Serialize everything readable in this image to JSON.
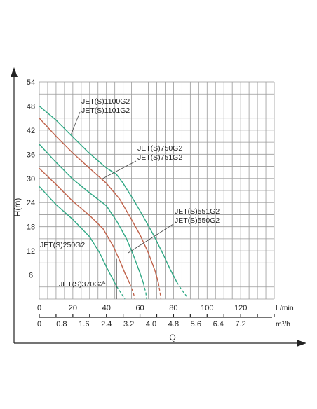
{
  "chart_data": {
    "type": "line",
    "ylabel": "H(m)",
    "xlabel": "Q",
    "y_ticks": [
      "6",
      "12",
      "18",
      "24",
      "30",
      "36",
      "42",
      "48",
      "54"
    ],
    "ylim": [
      0,
      54
    ],
    "x_axis_primary": {
      "unit": "L/min",
      "ticks": [
        "0",
        "20",
        "40",
        "60",
        "80",
        "100",
        "120"
      ],
      "range": [
        0,
        140
      ]
    },
    "x_axis_secondary": {
      "unit": "m³/h",
      "ticks": [
        "0",
        "0.8",
        "1.6",
        "2.4",
        "3.2",
        "4.0",
        "4.8",
        "5.6",
        "6.4",
        "7.2"
      ]
    },
    "grid": true,
    "colors": {
      "teal": "#2fa884",
      "brown": "#c0624a"
    },
    "series": [
      {
        "name": "JET(S)1100G2",
        "color": "teal",
        "points": [
          [
            0,
            48
          ],
          [
            10,
            44.5
          ],
          [
            20,
            40.3
          ],
          [
            30,
            36.2
          ],
          [
            40,
            32.6
          ],
          [
            46,
            31
          ],
          [
            50,
            28.8
          ],
          [
            56,
            24.8
          ],
          [
            62,
            20.5
          ],
          [
            68,
            16
          ],
          [
            74,
            11
          ],
          [
            78,
            7.4
          ],
          [
            82,
            4.2
          ]
        ],
        "dashed_points": [
          [
            82,
            4.2
          ],
          [
            85,
            2.2
          ],
          [
            88,
            0.6
          ]
        ]
      },
      {
        "name": "JET(S)750G2",
        "color": "brown",
        "points": [
          [
            0,
            45
          ],
          [
            10,
            40.5
          ],
          [
            20,
            36.3
          ],
          [
            30,
            32.5
          ],
          [
            40,
            28.8
          ],
          [
            48,
            24.8
          ],
          [
            54,
            20.5
          ],
          [
            60,
            16
          ],
          [
            65,
            11.5
          ],
          [
            69,
            7
          ],
          [
            71,
            4
          ]
        ],
        "dashed_points": [
          [
            71,
            4
          ],
          [
            72,
            1.5
          ],
          [
            72.5,
            0
          ]
        ]
      },
      {
        "name": "JET(S)551G2",
        "color": "teal",
        "points": [
          [
            0,
            38.5
          ],
          [
            10,
            34
          ],
          [
            20,
            29.8
          ],
          [
            30,
            26.4
          ],
          [
            40,
            23.2
          ],
          [
            46,
            19.5
          ],
          [
            52,
            15
          ],
          [
            56,
            11
          ],
          [
            60,
            6.5
          ],
          [
            62,
            4
          ]
        ],
        "dashed_points": [
          [
            62,
            4
          ],
          [
            63.5,
            1.6
          ],
          [
            64,
            0
          ]
        ]
      },
      {
        "name": "JET(S)370G2",
        "color": "brown",
        "points": [
          [
            0,
            32.5
          ],
          [
            10,
            28.5
          ],
          [
            20,
            24.3
          ],
          [
            30,
            20.8
          ],
          [
            38,
            17.5
          ],
          [
            44,
            13.2
          ],
          [
            48,
            9.5
          ],
          [
            51,
            6.5
          ],
          [
            54,
            3.8
          ]
        ],
        "dashed_points": [
          [
            54,
            3.8
          ],
          [
            56,
            1.6
          ],
          [
            57,
            0
          ]
        ]
      },
      {
        "name": "JET(S)250G2",
        "color": "teal",
        "points": [
          [
            0,
            28
          ],
          [
            10,
            23.5
          ],
          [
            20,
            19.8
          ],
          [
            30,
            15.5
          ],
          [
            36,
            11.5
          ],
          [
            40,
            8
          ],
          [
            44,
            4.8
          ],
          [
            46,
            3.2
          ]
        ],
        "dashed_points": [
          [
            46,
            3.2
          ],
          [
            49,
            1.3
          ],
          [
            51,
            0
          ]
        ]
      }
    ],
    "annotations": [
      {
        "lines": [
          "JET(S)1100G2",
          "JET(S)1101G2"
        ],
        "pointer_to": [
          19,
          41
        ]
      },
      {
        "lines": [
          "JET(S)750G2",
          "JET(S)751G2"
        ],
        "pointer_to": [
          37,
          29.8
        ]
      },
      {
        "lines": [
          "JET(S)551G2",
          "JET(S)550G2"
        ],
        "pointer_to": [
          53,
          11.5
        ]
      },
      {
        "lines": [
          "JET(S)250G2"
        ],
        "pointer_to": null
      },
      {
        "lines": [
          "JET(S)370G2"
        ],
        "pointer_to": [
          38,
          4.5
        ]
      }
    ],
    "marker_line_x": 46
  }
}
